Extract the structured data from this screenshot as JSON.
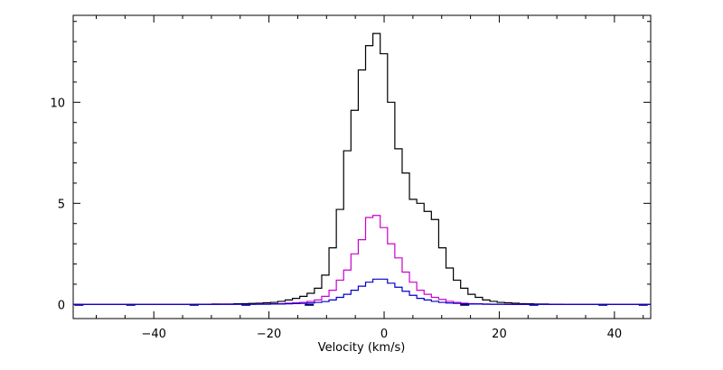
{
  "chart_data": {
    "type": "line",
    "title": "",
    "xlabel": "Velocity (km/s)",
    "ylabel": "",
    "xlim": [
      -54,
      46.3
    ],
    "ylim": [
      -0.7,
      14.3
    ],
    "xticks": [
      -40,
      -20,
      0,
      20,
      40
    ],
    "yticks": [
      0,
      5,
      10
    ],
    "grid": false,
    "step": true,
    "bin_width": 1.27,
    "x_start": -33.7,
    "series": [
      {
        "color": "#000000",
        "values": [
          0.0,
          0.01,
          0.01,
          0.02,
          0.02,
          0.02,
          0.03,
          0.04,
          0.05,
          0.06,
          0.08,
          0.1,
          0.15,
          0.22,
          0.3,
          0.4,
          0.55,
          0.8,
          1.45,
          2.8,
          4.7,
          7.6,
          9.6,
          11.6,
          12.8,
          13.4,
          12.4,
          10.0,
          7.7,
          6.5,
          5.2,
          5.0,
          4.6,
          4.2,
          2.8,
          1.8,
          1.2,
          0.8,
          0.5,
          0.35,
          0.22,
          0.15,
          0.1,
          0.08,
          0.06,
          0.04,
          0.03,
          0.02,
          0.02,
          0.01,
          0.01,
          0.0
        ]
      },
      {
        "color": "#cc00cc",
        "values": [
          0.0,
          0.0,
          0.0,
          0.0,
          0.01,
          0.01,
          0.01,
          0.01,
          0.01,
          0.02,
          0.02,
          0.03,
          0.04,
          0.06,
          0.08,
          0.1,
          0.15,
          0.22,
          0.4,
          0.7,
          1.2,
          1.7,
          2.5,
          3.2,
          4.3,
          4.4,
          3.8,
          3.0,
          2.3,
          1.6,
          1.1,
          0.7,
          0.5,
          0.35,
          0.25,
          0.15,
          0.1,
          0.06,
          0.04,
          0.03,
          0.02,
          0.01,
          0.01,
          0.01,
          0.0,
          0.0,
          0.0,
          0.0,
          0.0,
          0.0,
          0.0,
          0.0
        ]
      },
      {
        "color": "#0000cc",
        "values": [
          0.0,
          0.0,
          0.0,
          0.0,
          0.0,
          0.0,
          0.01,
          0.01,
          0.01,
          0.01,
          0.01,
          0.02,
          0.02,
          0.03,
          0.04,
          0.05,
          0.07,
          0.1,
          0.14,
          0.22,
          0.35,
          0.5,
          0.7,
          0.9,
          1.1,
          1.25,
          1.25,
          1.05,
          0.85,
          0.65,
          0.45,
          0.3,
          0.22,
          0.15,
          0.1,
          0.07,
          0.05,
          0.03,
          0.02,
          0.02,
          0.01,
          0.01,
          0.01,
          0.0,
          0.0,
          0.0,
          0.0,
          0.0,
          0.0,
          0.0,
          0.0,
          0.0
        ]
      }
    ],
    "noise_dashes": {
      "color": "#000066",
      "x": [
        -53,
        -44,
        -33,
        -24,
        -13,
        14,
        26,
        38,
        45
      ]
    }
  }
}
